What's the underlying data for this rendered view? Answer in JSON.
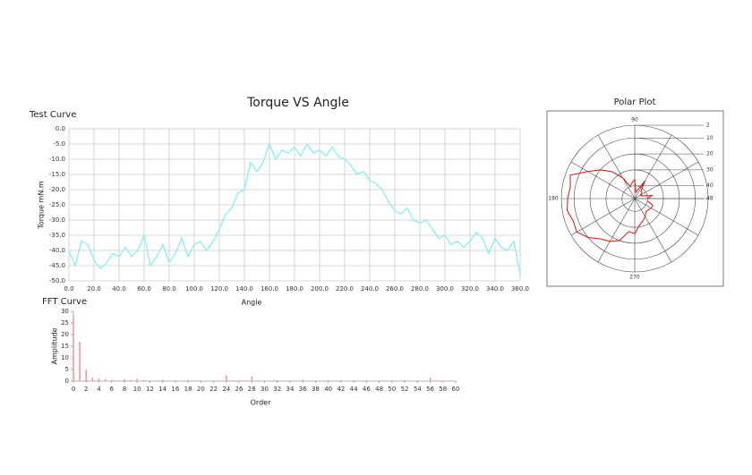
{
  "chart_data": [
    {
      "type": "line",
      "title": "Torque VS Angle",
      "subtitle": "Test Curve",
      "x_label": "Angle",
      "y_label": "Torque mN.m",
      "x": [
        0,
        5,
        10,
        15,
        20,
        25,
        30,
        35,
        40,
        45,
        50,
        55,
        60,
        65,
        70,
        75,
        80,
        85,
        90,
        95,
        100,
        105,
        110,
        115,
        120,
        125,
        130,
        135,
        140,
        145,
        150,
        155,
        160,
        165,
        170,
        175,
        180,
        185,
        190,
        195,
        200,
        205,
        210,
        215,
        220,
        225,
        230,
        235,
        240,
        245,
        250,
        255,
        260,
        265,
        270,
        275,
        280,
        285,
        290,
        295,
        300,
        305,
        310,
        315,
        320,
        325,
        330,
        335,
        340,
        345,
        350,
        355,
        360
      ],
      "series": [
        {
          "name": "Torque",
          "color": "#86f0f0",
          "values": [
            -40,
            -45,
            -37,
            -38,
            -43,
            -46,
            -44,
            -41,
            -42,
            -39,
            -42,
            -40,
            -35,
            -45,
            -42,
            -38,
            -44,
            -41,
            -36,
            -42,
            -38,
            -37,
            -40,
            -37,
            -33,
            -28,
            -26,
            -21,
            -20,
            -11,
            -14,
            -11,
            -5,
            -10,
            -7,
            -8,
            -6,
            -9,
            -5,
            -8,
            -7,
            -9,
            -6,
            -9,
            -10,
            -12,
            -15,
            -14,
            -17,
            -18,
            -20,
            -24,
            -27,
            -28,
            -26,
            -30,
            -31,
            -30,
            -33,
            -36,
            -35,
            -38,
            -37,
            -39,
            -37,
            -34,
            -36,
            -41,
            -36,
            -39,
            -40,
            -37,
            -48
          ]
        }
      ],
      "xlim": [
        0,
        360
      ],
      "xticks": [
        {
          "value": 0,
          "label": "0.0"
        },
        {
          "value": 20,
          "label": "20.0"
        },
        {
          "value": 40,
          "label": "40.0"
        },
        {
          "value": 60,
          "label": "60.0"
        },
        {
          "value": 80,
          "label": "80.0"
        },
        {
          "value": 100,
          "label": "100.0"
        },
        {
          "value": 120,
          "label": "120.0"
        },
        {
          "value": 140,
          "label": "140.0"
        },
        {
          "value": 160,
          "label": "160.0"
        },
        {
          "value": 180,
          "label": "180.0"
        },
        {
          "value": 200,
          "label": "200.0"
        },
        {
          "value": 220,
          "label": "220.0"
        },
        {
          "value": 240,
          "label": "240.0"
        },
        {
          "value": 260,
          "label": "260.0"
        },
        {
          "value": 280,
          "label": "280.0"
        },
        {
          "value": 300,
          "label": "300.0"
        },
        {
          "value": 320,
          "label": "320.0"
        },
        {
          "value": 340,
          "label": "340.0"
        },
        {
          "value": 360,
          "label": "360.0"
        }
      ],
      "ylim": [
        -50,
        0
      ],
      "yticks": [
        {
          "value": 0,
          "label": "0.0"
        },
        {
          "value": -5,
          "label": "-5.0"
        },
        {
          "value": -10,
          "label": "-10.0"
        },
        {
          "value": -15,
          "label": "-15.0"
        },
        {
          "value": -20,
          "label": "-20.0"
        },
        {
          "value": -25,
          "label": "-25.0"
        },
        {
          "value": -30,
          "label": "-30.0"
        },
        {
          "value": -35,
          "label": "-35.0"
        },
        {
          "value": -40,
          "label": "-40.0"
        },
        {
          "value": -45,
          "label": "-45.0"
        },
        {
          "value": -50,
          "label": "-50.0"
        }
      ],
      "grid": true
    },
    {
      "type": "bar",
      "title": "FFT Curve",
      "x_label": "Order",
      "y_label": "Amplitude",
      "color": "#f29a9a",
      "x": [
        0,
        1,
        2,
        3,
        4,
        5,
        6,
        7,
        8,
        9,
        10,
        11,
        12,
        13,
        14,
        15,
        16,
        17,
        18,
        19,
        20,
        21,
        22,
        23,
        24,
        25,
        26,
        27,
        28,
        29,
        30,
        31,
        32,
        33,
        34,
        35,
        36,
        37,
        38,
        39,
        40,
        41,
        42,
        43,
        44,
        45,
        46,
        47,
        48,
        49,
        50,
        51,
        52,
        53,
        54,
        55,
        56,
        57,
        58,
        59,
        60
      ],
      "values": [
        28,
        17,
        5,
        1.5,
        1.2,
        1,
        0.5,
        0.3,
        0.8,
        0.5,
        1,
        0.4,
        0.3,
        0.2,
        0.5,
        0.2,
        0.3,
        0.2,
        0.4,
        0.2,
        0.3,
        0.2,
        0.3,
        0.2,
        2.5,
        0.3,
        0.2,
        0.3,
        2,
        0.3,
        0.2,
        0.2,
        0.4,
        0.2,
        0.3,
        0.2,
        0.5,
        0.2,
        0.3,
        0.2,
        0.4,
        0.2,
        0.3,
        0.2,
        0.3,
        0.2,
        0.3,
        0.2,
        0.4,
        0.2,
        0.3,
        0.2,
        0.4,
        0.2,
        0.3,
        0.2,
        1.5,
        0.3,
        0.2,
        0.2,
        0.2
      ],
      "xlim": [
        0,
        60
      ],
      "xticks": [
        0,
        2,
        4,
        6,
        8,
        10,
        12,
        14,
        16,
        18,
        20,
        22,
        24,
        26,
        28,
        30,
        32,
        34,
        36,
        38,
        40,
        42,
        44,
        46,
        48,
        50,
        52,
        54,
        56,
        58,
        60
      ],
      "ylim": [
        0,
        30
      ],
      "yticks": [
        0,
        5,
        10,
        15,
        20,
        25,
        30
      ]
    },
    {
      "type": "polar",
      "title": "Polar Plot",
      "color": "#e01010",
      "theta": [
        0,
        10,
        20,
        30,
        40,
        50,
        60,
        70,
        80,
        90,
        100,
        110,
        120,
        130,
        140,
        150,
        160,
        170,
        180,
        190,
        200,
        210,
        220,
        230,
        240,
        250,
        260,
        270,
        280,
        290,
        300,
        310,
        320,
        330,
        340,
        350
      ],
      "r": [
        40,
        37,
        43,
        44,
        42,
        42,
        35,
        42,
        44,
        36,
        38,
        40,
        33,
        26,
        20,
        14,
        5,
        7,
        6,
        5,
        7,
        6,
        10,
        15,
        17,
        20,
        27,
        26,
        31,
        33,
        35,
        37,
        37,
        36,
        36,
        40
      ],
      "rlim": [
        48,
        2
      ],
      "rticks": [
        2,
        10,
        20,
        30,
        40,
        48
      ],
      "thetaticks": [
        90,
        180,
        270
      ]
    }
  ]
}
